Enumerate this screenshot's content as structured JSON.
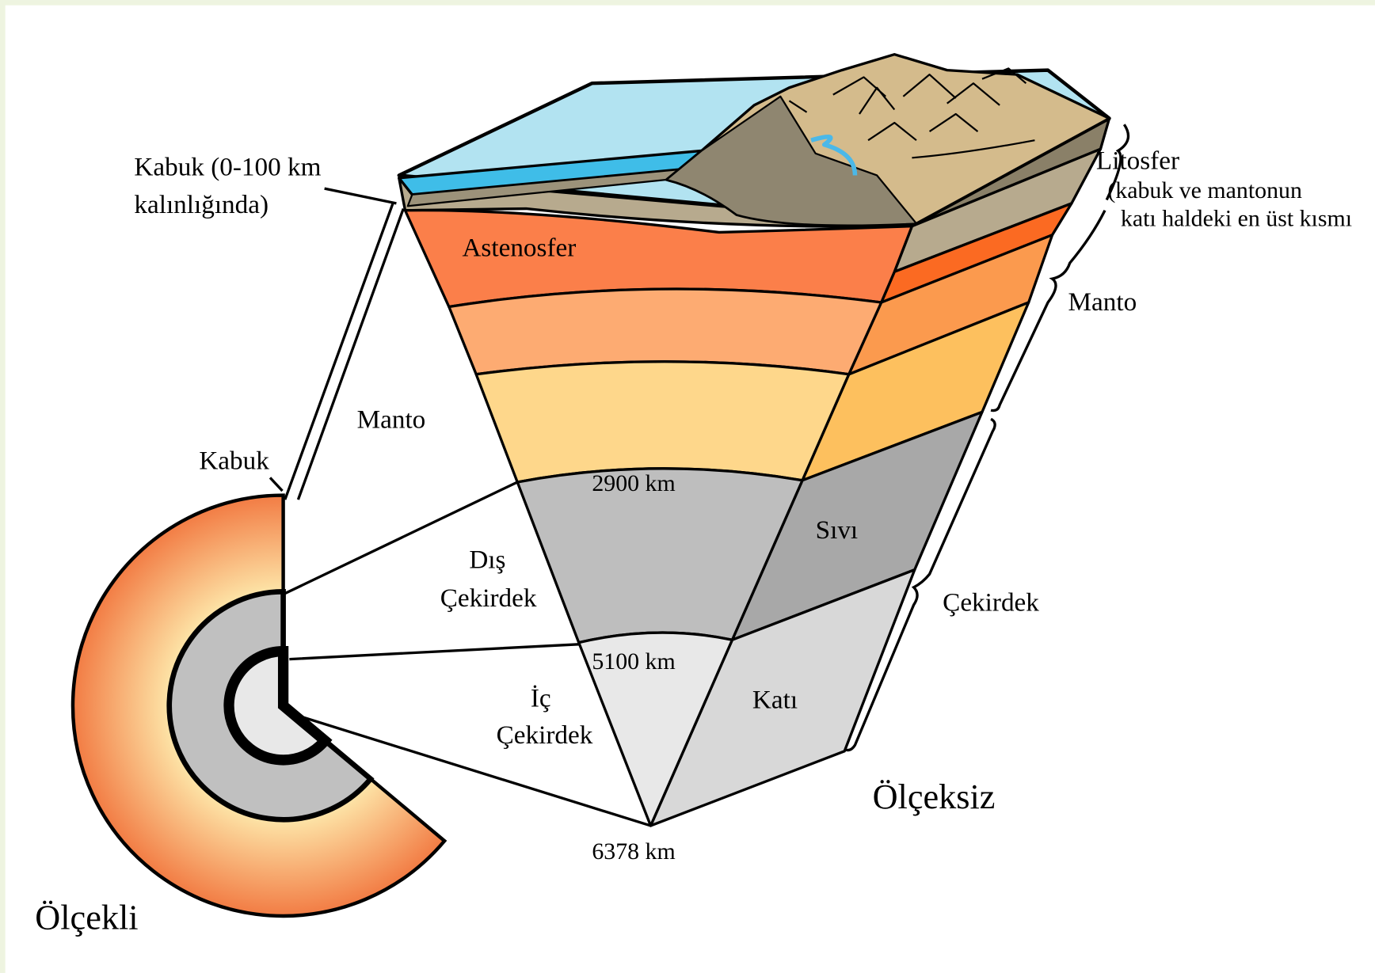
{
  "labels": {
    "crust_note": [
      "Kabuk (0-100 km",
      "kalınlığında)"
    ],
    "lithosphere": "Litosfer",
    "lithosphere_note": [
      "(kabuk ve mantonun",
      "katı haldeki en üst kısmı"
    ],
    "asthenosphere": "Astenosfer",
    "mantle_left": "Manto",
    "mantle_right": "Manto",
    "crust": "Kabuk",
    "depth_outer": "2900 km",
    "outer_core": [
      "Dış",
      "Çekirdek"
    ],
    "liquid": "Sıvı",
    "core": "Çekirdek",
    "depth_inner": "5100 km",
    "inner_core": [
      "İç",
      "Çekirdek"
    ],
    "solid": "Katı",
    "not_to_scale": "Ölçeksiz",
    "depth_center": "6378 km",
    "to_scale": "Ölçekli"
  }
}
